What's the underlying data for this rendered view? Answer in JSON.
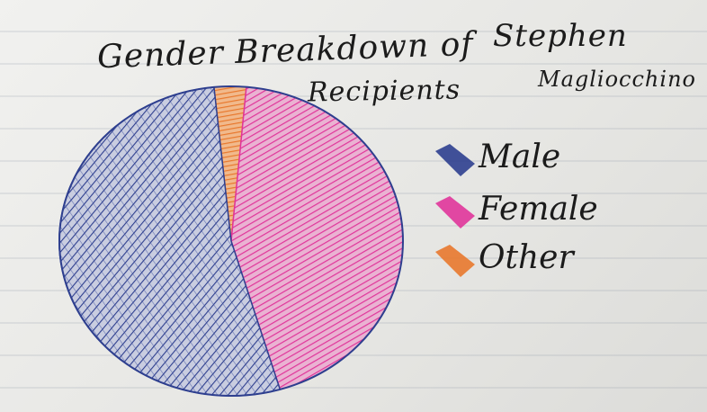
{
  "chart_data": {
    "type": "pie",
    "title_line1": "Gender Breakdown of",
    "title_line2": "Recipients",
    "author_first": "Stephen",
    "author_last": "Magliocchino",
    "slices": [
      {
        "label": "Male",
        "value": 53,
        "color": "#2e3f8f"
      },
      {
        "label": "Female",
        "value": 44,
        "color": "#e0359a"
      },
      {
        "label": "Other",
        "value": 3,
        "color": "#e8782d"
      }
    ],
    "legend_position": "right"
  }
}
